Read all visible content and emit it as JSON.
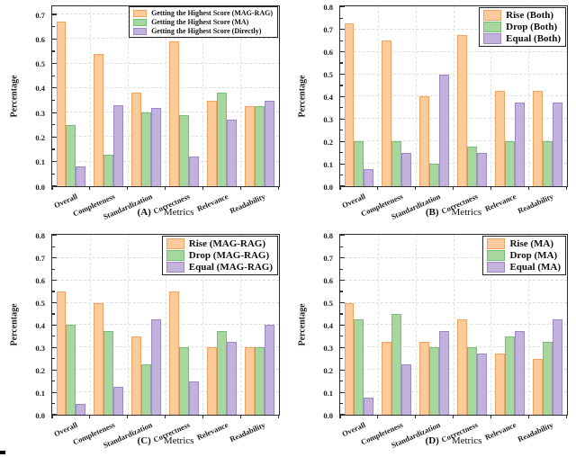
{
  "figure": {
    "xlabel": "Metrics",
    "ylabel": "Percentage"
  },
  "colors": {
    "orange": {
      "fill": "#FBCB9C",
      "border": "#F0A35E"
    },
    "green": {
      "fill": "#A7D79F",
      "border": "#6FC177"
    },
    "purple": {
      "fill": "#C3B2DC",
      "border": "#9D88C7"
    },
    "axis": "#2e2e2e",
    "grid": "#e0e0e0"
  },
  "chart_data": [
    {
      "type": "bar",
      "panel": "(A)",
      "xlabel": "Metrics",
      "ylabel": "Percentage",
      "categories": [
        "Overall",
        "Completeness",
        "Standardization",
        "Correctness",
        "Relevance",
        "Readability"
      ],
      "series": [
        {
          "name": "Getting the Highest Score (MAG-RAG)",
          "color": "orange",
          "values": [
            0.67,
            0.54,
            0.38,
            0.59,
            0.35,
            0.325
          ]
        },
        {
          "name": "Getting the Highest Score (MA)",
          "color": "green",
          "values": [
            0.25,
            0.13,
            0.3,
            0.29,
            0.38,
            0.325
          ]
        },
        {
          "name": "Getting the Highest Score (Directly)",
          "color": "purple",
          "values": [
            0.08,
            0.33,
            0.32,
            0.12,
            0.27,
            0.35
          ]
        }
      ],
      "ylim": [
        0,
        0.73
      ],
      "yticks": [
        0.0,
        0.1,
        0.2,
        0.3,
        0.4,
        0.5,
        0.6,
        0.7
      ],
      "grid": true,
      "legend_position": "top-right"
    },
    {
      "type": "bar",
      "panel": "(B)",
      "xlabel": "Metrics",
      "ylabel": "Percentage",
      "categories": [
        "Overall",
        "Completeness",
        "Standardization",
        "Correctness",
        "Relevance",
        "Readability"
      ],
      "series": [
        {
          "name": "Rise (Both)",
          "color": "orange",
          "values": [
            0.725,
            0.65,
            0.4,
            0.675,
            0.425,
            0.425
          ]
        },
        {
          "name": "Drop (Both)",
          "color": "green",
          "values": [
            0.2,
            0.2,
            0.1,
            0.175,
            0.2,
            0.2
          ]
        },
        {
          "name": "Equal (Both)",
          "color": "purple",
          "values": [
            0.075,
            0.15,
            0.5,
            0.15,
            0.375,
            0.375
          ]
        }
      ],
      "ylim": [
        0,
        0.8
      ],
      "yticks": [
        0.0,
        0.1,
        0.2,
        0.3,
        0.4,
        0.5,
        0.6,
        0.7,
        0.8
      ],
      "grid": true,
      "legend_position": "top-right"
    },
    {
      "type": "bar",
      "panel": "(C)",
      "xlabel": "Metrics",
      "ylabel": "Percentage",
      "categories": [
        "Overall",
        "Completeness",
        "Standardization",
        "Correctness",
        "Relevance",
        "Readability"
      ],
      "series": [
        {
          "name": "Rise (MAG-RAG)",
          "color": "orange",
          "values": [
            0.55,
            0.5,
            0.35,
            0.55,
            0.3,
            0.3
          ]
        },
        {
          "name": "Drop (MAG-RAG)",
          "color": "green",
          "values": [
            0.4,
            0.375,
            0.225,
            0.3,
            0.375,
            0.3
          ]
        },
        {
          "name": "Equal (MAG-RAG)",
          "color": "purple",
          "values": [
            0.05,
            0.125,
            0.425,
            0.15,
            0.325,
            0.4
          ]
        }
      ],
      "ylim": [
        0,
        0.8
      ],
      "yticks": [
        0.0,
        0.1,
        0.2,
        0.3,
        0.4,
        0.5,
        0.6,
        0.7,
        0.8
      ],
      "grid": true,
      "legend_position": "top-right"
    },
    {
      "type": "bar",
      "panel": "(D)",
      "xlabel": "Metrics",
      "ylabel": "Percentage",
      "categories": [
        "Overall",
        "Completeness",
        "Standardization",
        "Correctness",
        "Relevance",
        "Readability"
      ],
      "series": [
        {
          "name": "Rise (MA)",
          "color": "orange",
          "values": [
            0.5,
            0.325,
            0.325,
            0.425,
            0.275,
            0.25
          ]
        },
        {
          "name": "Drop (MA)",
          "color": "green",
          "values": [
            0.425,
            0.45,
            0.3,
            0.3,
            0.35,
            0.325
          ]
        },
        {
          "name": "Equal (MA)",
          "color": "purple",
          "values": [
            0.075,
            0.225,
            0.375,
            0.275,
            0.375,
            0.425
          ]
        }
      ],
      "ylim": [
        0,
        0.8
      ],
      "yticks": [
        0.0,
        0.1,
        0.2,
        0.3,
        0.4,
        0.5,
        0.6,
        0.7,
        0.8
      ],
      "grid": true,
      "legend_position": "top-right"
    }
  ]
}
